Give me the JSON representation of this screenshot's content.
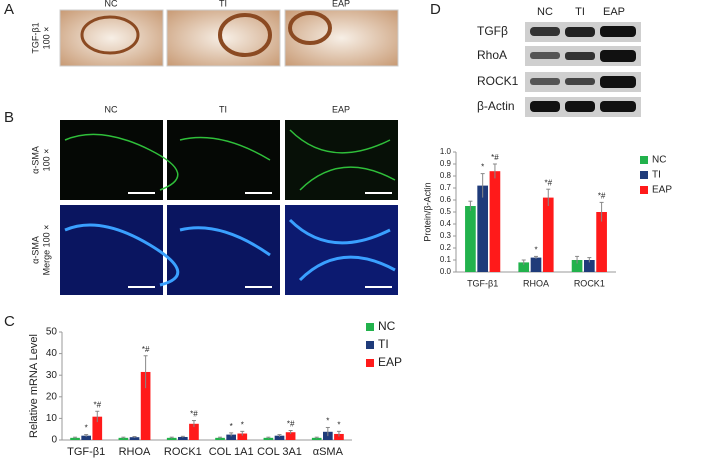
{
  "panels": {
    "a": {
      "label": "A",
      "columns": [
        "NC",
        "TI",
        "EAP"
      ],
      "row_label": [
        "TGF-β1",
        "100 ×"
      ]
    },
    "b": {
      "label": "B",
      "columns": [
        "NC",
        "TI",
        "EAP"
      ],
      "row1_label": [
        "α-SMA",
        "100 ×"
      ],
      "row2_label": [
        "α-SMA",
        "Merge 100 ×"
      ]
    },
    "c": {
      "label": "C"
    },
    "d": {
      "label": "D",
      "columns": [
        "NC",
        "TI",
        "EAP"
      ],
      "rows": [
        "TGFβ",
        "RhoA",
        "ROCK1",
        "β-Actin"
      ]
    }
  },
  "chart_data": [
    {
      "type": "bar",
      "y_label": "Relative mRNA Level",
      "categories": [
        "TGF-β1",
        "RHOA",
        "ROCK1",
        "COL 1A1",
        "COL 3A1",
        "αSMA"
      ],
      "ylim": [
        0,
        50
      ],
      "yticks": [
        0,
        10,
        20,
        30,
        40,
        50
      ],
      "series": [
        {
          "name": "NC",
          "color": "#22b24c",
          "values": [
            1,
            1,
            1,
            1,
            1,
            1
          ],
          "errors": [
            0.3,
            0.3,
            0.3,
            0.3,
            0.3,
            0.3
          ],
          "labels": [
            null,
            null,
            null,
            null,
            null,
            null
          ]
        },
        {
          "name": "TI",
          "color": "#1f3b7a",
          "values": [
            2,
            1.3,
            1.4,
            2.5,
            2,
            3.8
          ],
          "errors": [
            0.5,
            0.3,
            0.3,
            0.8,
            0.5,
            2
          ],
          "labels": [
            "*",
            null,
            null,
            "*",
            null,
            "*"
          ]
        },
        {
          "name": "EAP",
          "color": "#ff1a1a",
          "values": [
            10.8,
            31.5,
            7.5,
            3,
            3.6,
            2.8
          ],
          "errors": [
            2.5,
            7.5,
            1.5,
            1,
            0.8,
            1.2
          ],
          "labels": [
            "*#",
            "*#",
            "*#",
            "*",
            "*#",
            "*"
          ]
        }
      ]
    },
    {
      "type": "bar",
      "y_label": "Protein/β-Actin",
      "categories": [
        "TGF-β1",
        "RHOA",
        "ROCK1"
      ],
      "ylim": [
        0,
        1.0
      ],
      "yticks": [
        {
          "value": 0,
          "label": "0.0"
        },
        0.1,
        0.2,
        0.3,
        0.4,
        0.5,
        0.6,
        0.7,
        0.8,
        0.9,
        {
          "value": 1.0,
          "label": "1.0"
        }
      ],
      "series": [
        {
          "name": "NC",
          "color": "#22b24c",
          "values": [
            0.55,
            0.08,
            0.1
          ],
          "errors": [
            0.04,
            0.02,
            0.03
          ],
          "labels": [
            null,
            null,
            null
          ]
        },
        {
          "name": "TI",
          "color": "#1f3b7a",
          "values": [
            0.72,
            0.12,
            0.1
          ],
          "errors": [
            0.1,
            0.01,
            0.02
          ],
          "labels": [
            "*",
            "*",
            null
          ]
        },
        {
          "name": "EAP",
          "color": "#ff1a1a",
          "values": [
            0.84,
            0.62,
            0.5
          ],
          "errors": [
            0.06,
            0.07,
            0.08
          ],
          "labels": [
            "*#",
            "*#",
            "*#"
          ]
        }
      ]
    }
  ]
}
